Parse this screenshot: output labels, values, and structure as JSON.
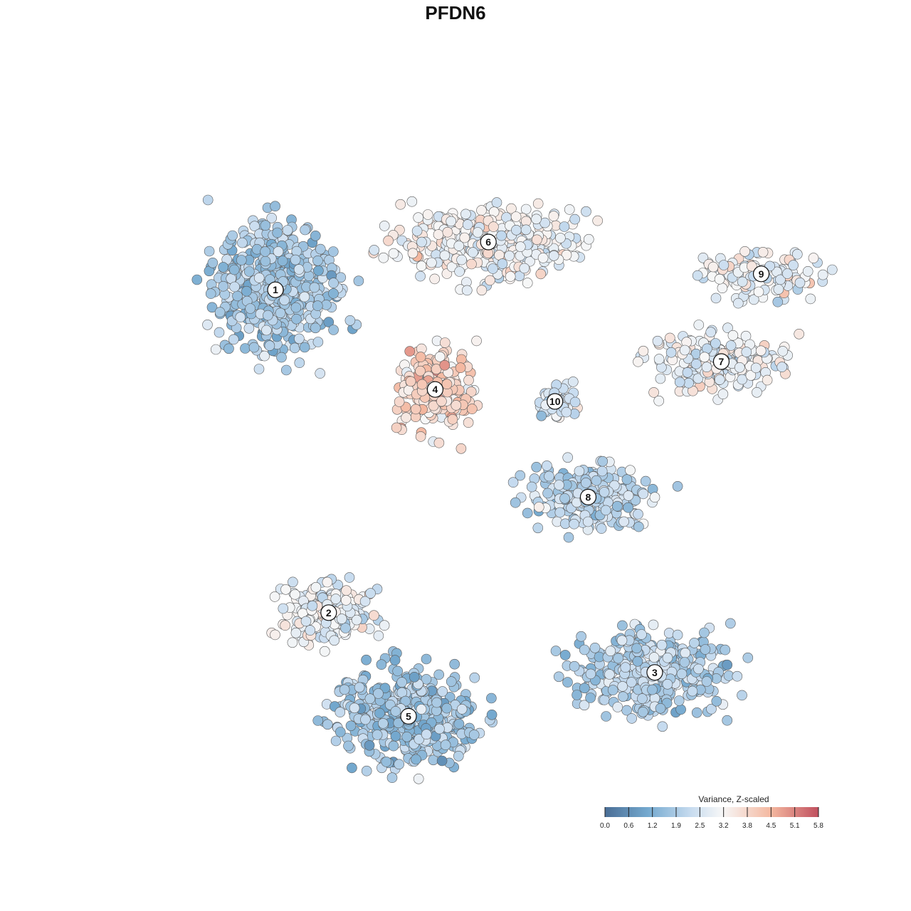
{
  "chart_data": {
    "type": "scatter",
    "title": "PFDN6",
    "xlabel": "",
    "ylabel": "",
    "grid": false,
    "legend": {
      "title": "Variance, Z-scaled",
      "position": "bottom-right",
      "ticks": [
        "0.0",
        "0.6",
        "1.2",
        "1.9",
        "2.5",
        "3.2",
        "3.8",
        "4.5",
        "5.1",
        "5.8"
      ],
      "range": [
        0.0,
        5.8
      ]
    },
    "colors": {
      "low": "#4a6e96",
      "low_mid": "#74a9cf",
      "mid_low": "#c6dbef",
      "mid": "#f7f7f7",
      "mid_high": "#f4b79f",
      "high": "#c0505f"
    },
    "clusters": [
      {
        "label": "1",
        "x": 0.2,
        "y": 0.63,
        "mean_value": 1.9
      },
      {
        "label": "2",
        "x": 0.28,
        "y": -0.18,
        "mean_value": 2.9
      },
      {
        "label": "3",
        "x": 0.77,
        "y": -0.33,
        "mean_value": 2.1
      },
      {
        "label": "4",
        "x": 0.44,
        "y": 0.38,
        "mean_value": 3.9
      },
      {
        "label": "5",
        "x": 0.4,
        "y": -0.44,
        "mean_value": 1.8
      },
      {
        "label": "6",
        "x": 0.52,
        "y": 0.75,
        "mean_value": 3.1
      },
      {
        "label": "7",
        "x": 0.87,
        "y": 0.45,
        "mean_value": 2.9
      },
      {
        "label": "8",
        "x": 0.67,
        "y": 0.11,
        "mean_value": 2.2
      },
      {
        "label": "9",
        "x": 0.93,
        "y": 0.67,
        "mean_value": 3.0
      },
      {
        "label": "10",
        "x": 0.62,
        "y": 0.35,
        "mean_value": 2.6
      }
    ]
  }
}
